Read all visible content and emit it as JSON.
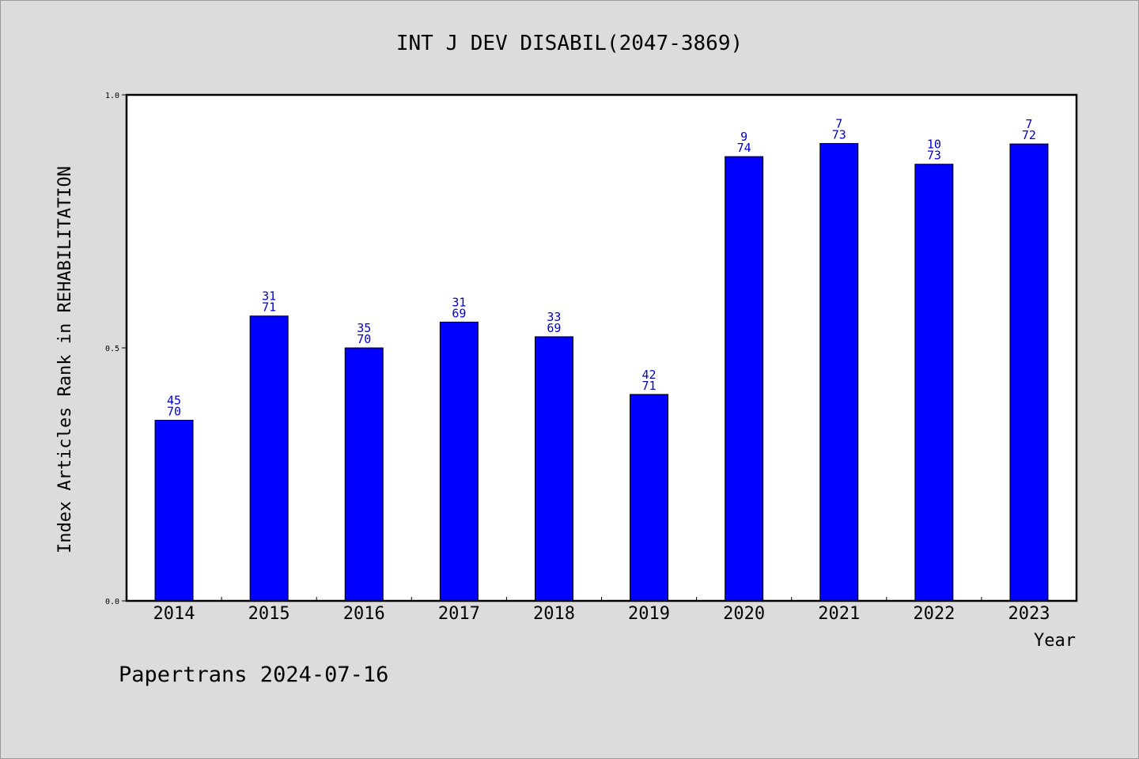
{
  "chart_data": {
    "type": "bar",
    "title": "INT J DEV DISABIL(2047-3869)",
    "xlabel": "Year",
    "ylabel": "Index Articles Rank in REHABILITATION",
    "ylim": [
      0,
      1.0
    ],
    "yticks": [
      "0.0",
      "0.5",
      "1.0"
    ],
    "grid": false,
    "categories": [
      "2014",
      "2015",
      "2016",
      "2017",
      "2018",
      "2019",
      "2020",
      "2021",
      "2022",
      "2023"
    ],
    "values": [
      0.357,
      0.563,
      0.5,
      0.551,
      0.522,
      0.408,
      0.878,
      0.904,
      0.863,
      0.903
    ],
    "ranks": [
      "45",
      "31",
      "35",
      "31",
      "33",
      "42",
      "9",
      "7",
      "10",
      "7"
    ],
    "totals": [
      "70",
      "71",
      "70",
      "69",
      "69",
      "71",
      "74",
      "73",
      "73",
      "72"
    ],
    "bar_color": "#0000ff",
    "label_color": "#0000cc"
  },
  "footer": "Papertrans 2024-07-16"
}
